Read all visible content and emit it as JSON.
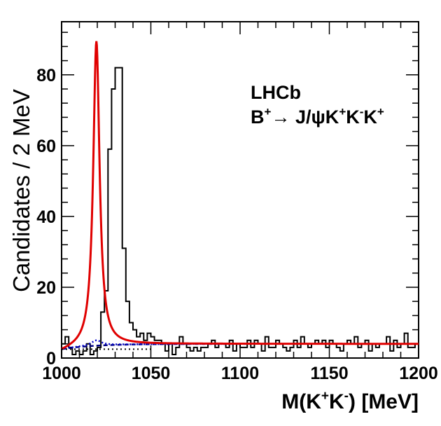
{
  "chart_data": {
    "type": "histogram",
    "title": "",
    "xlabel": "M(K⁺K⁻)  [MeV]",
    "ylabel": "Candidates / 2 MeV",
    "xlim": [
      1000,
      1200
    ],
    "ylim": [
      0,
      95
    ],
    "x_ticks": [
      1000,
      1050,
      1100,
      1150,
      1200
    ],
    "y_ticks": [
      0,
      20,
      40,
      60,
      80
    ],
    "annotations": [
      "LHCb",
      "B⁺→ J/ψK⁺K⁻K⁺"
    ],
    "bin_width": 2,
    "histogram_counts": [
      4,
      6,
      3,
      1,
      2,
      1,
      2,
      4,
      1,
      2,
      3,
      13,
      19,
      59,
      76,
      82,
      82,
      31,
      16,
      10,
      8,
      6,
      7,
      5,
      7,
      6,
      5,
      5,
      4,
      2,
      4,
      1,
      3,
      6,
      4,
      3,
      2,
      3,
      2,
      3,
      3,
      4,
      5,
      3,
      4,
      4,
      3,
      5,
      2,
      4,
      3,
      3,
      5,
      3,
      5,
      4,
      2,
      6,
      3,
      3,
      5,
      4,
      3,
      2,
      3,
      5,
      3,
      6,
      4,
      3,
      4,
      5,
      4,
      5,
      3,
      5,
      4,
      3,
      2,
      4,
      5,
      4,
      6,
      3,
      4,
      5,
      2,
      4,
      3,
      4,
      4,
      6,
      2,
      5,
      3,
      4,
      7,
      3,
      3,
      4
    ],
    "fit": {
      "type": "line",
      "color": "#e00000",
      "peak_mass": 1019.5,
      "peak_height": 89.5,
      "width": 4.3,
      "background_start": 1.5,
      "background_plateau": 4.0
    },
    "phi_component": {
      "type": "line",
      "style": "dotted",
      "color": "#0000cc",
      "peak_mass": 1019.5,
      "peak_height": 5
    },
    "background_component": {
      "type": "line",
      "style": "dashed",
      "color": "#000080",
      "start": 2.5,
      "end": 4.0
    }
  }
}
